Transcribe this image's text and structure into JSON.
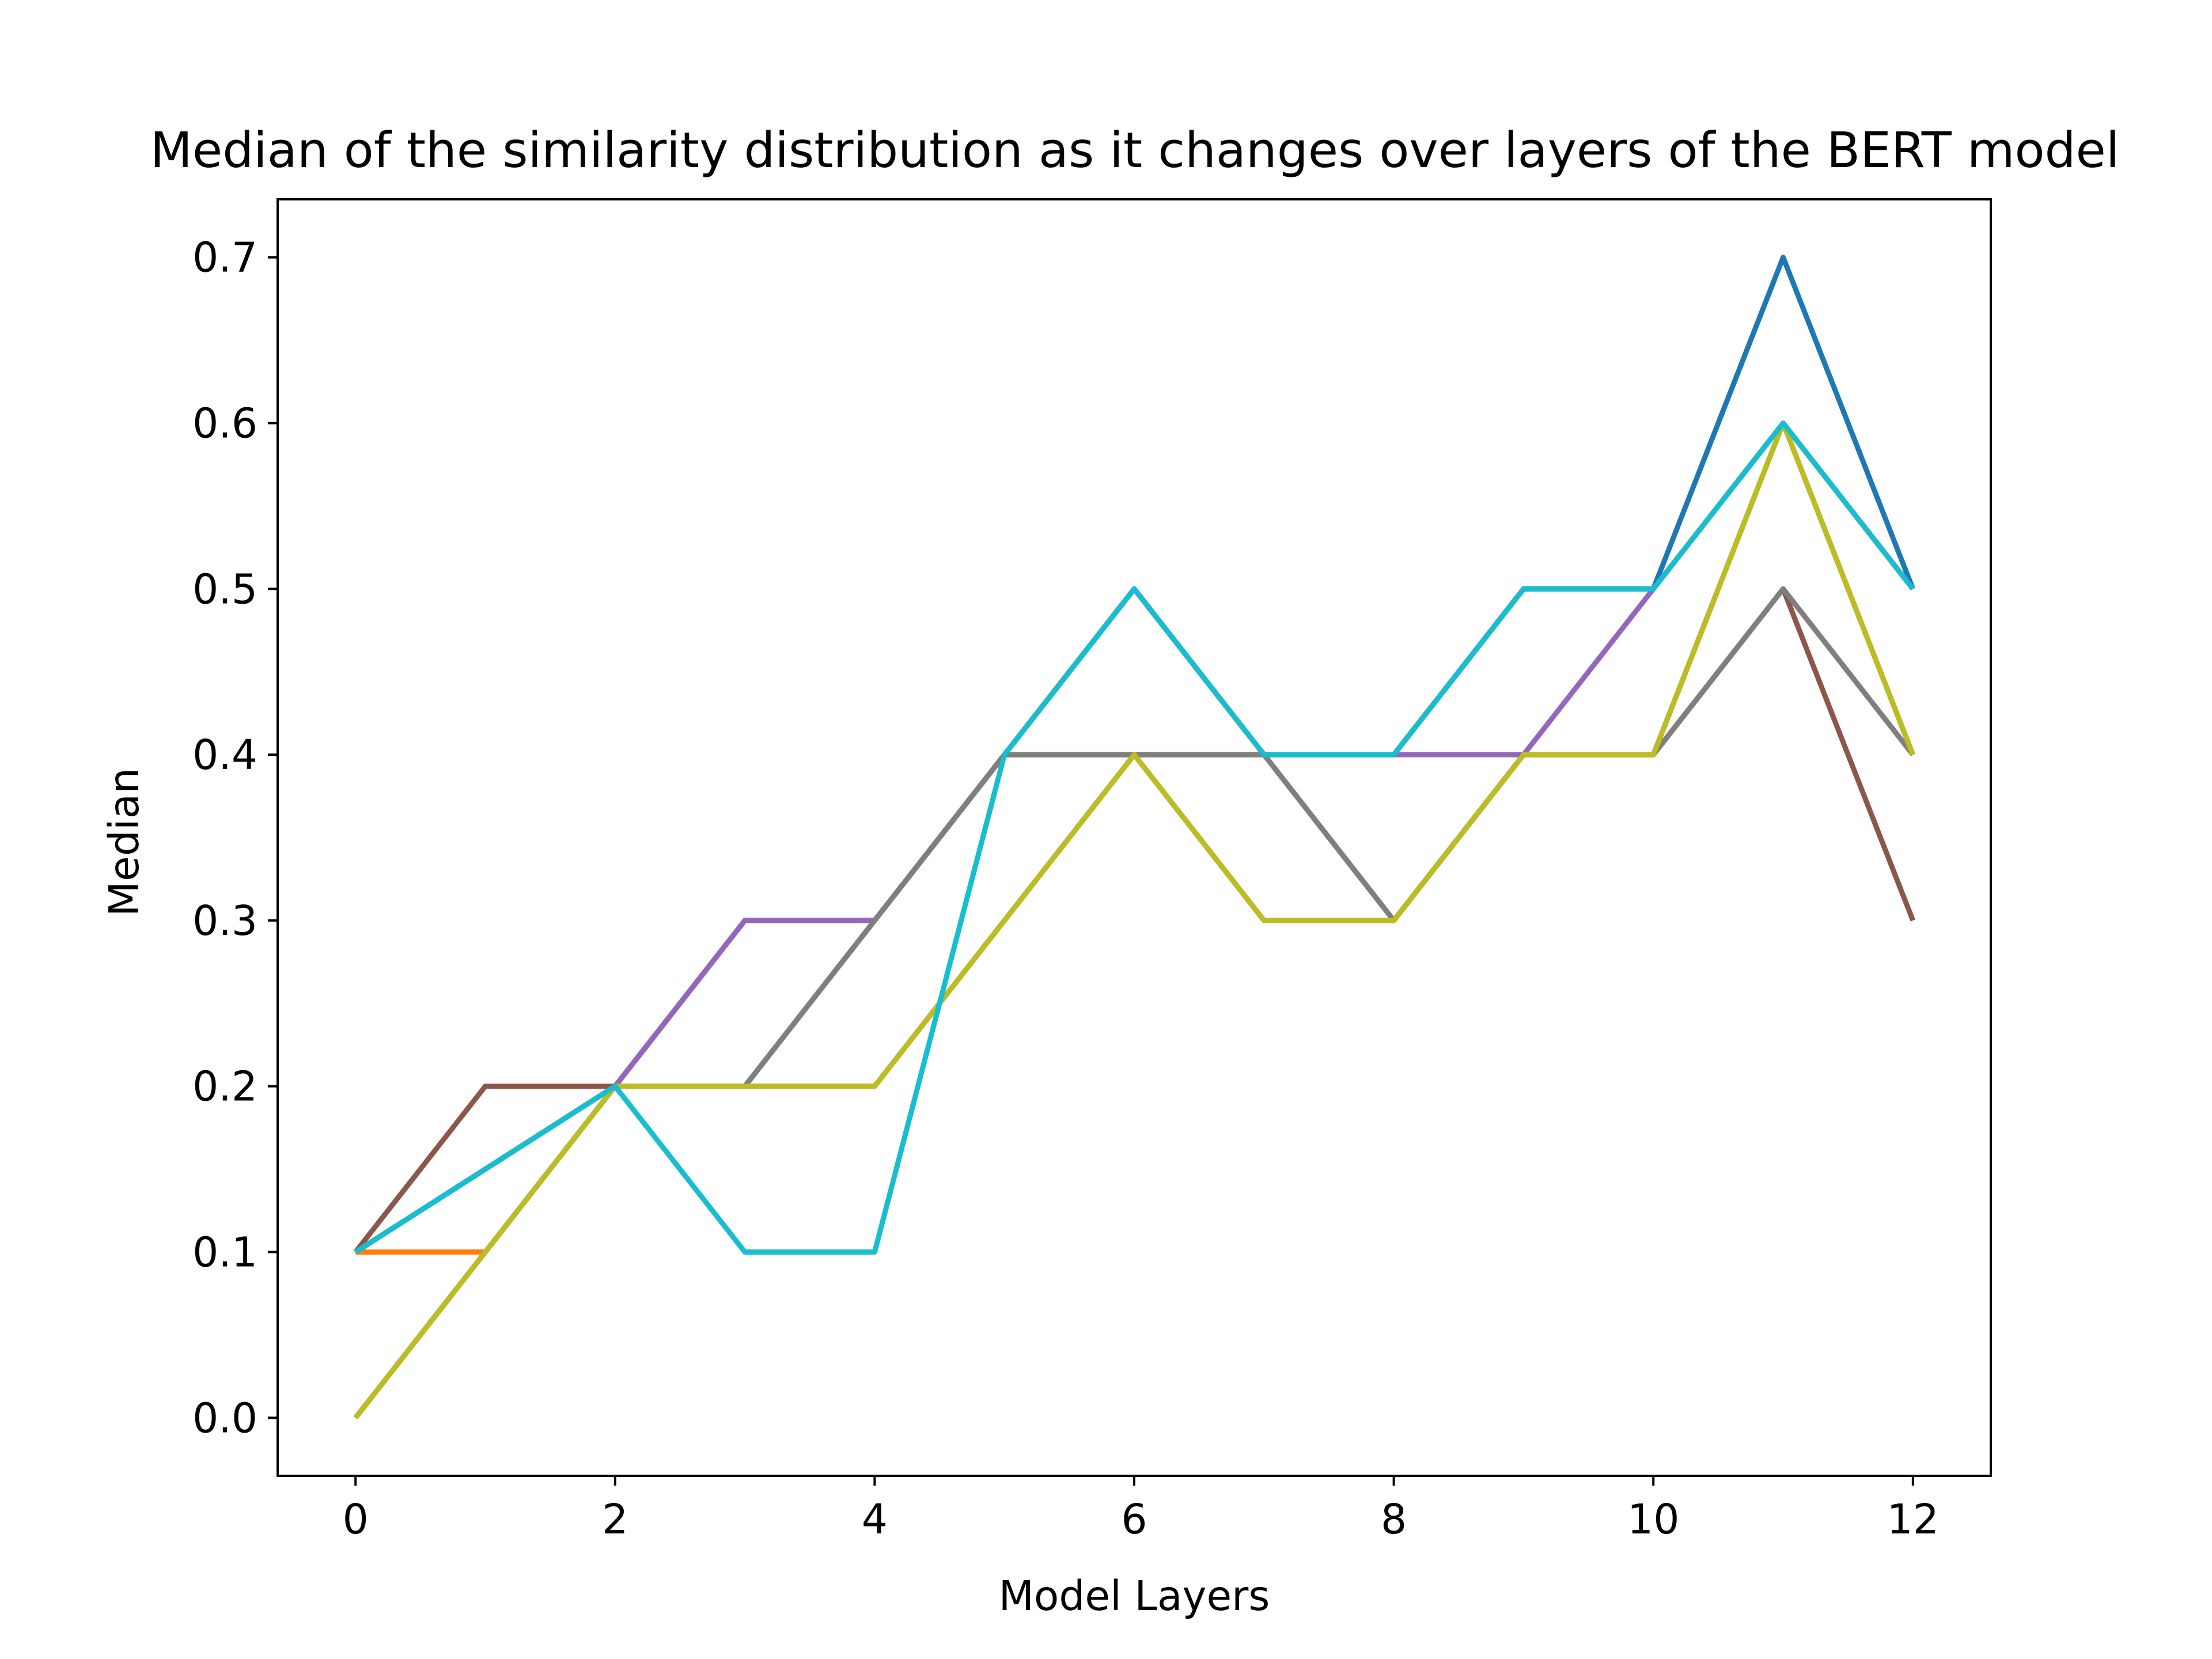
{
  "chart_data": {
    "type": "line",
    "title": "Median of the similarity distribution as it changes over layers of the BERT model",
    "xlabel": "Model Layers",
    "ylabel": "Median",
    "xlim": [
      -0.6,
      12.6
    ],
    "ylim": [
      -0.035,
      0.735
    ],
    "xticks": [
      0,
      2,
      4,
      6,
      8,
      10,
      12
    ],
    "yticks": [
      0.0,
      0.1,
      0.2,
      0.3,
      0.4,
      0.5,
      0.6,
      0.7
    ],
    "grid": false,
    "legend": "none",
    "x": [
      0,
      1,
      2,
      3,
      4,
      5,
      6,
      7,
      8,
      9,
      10,
      11,
      12
    ],
    "series": [
      {
        "color": "#1f77b4",
        "values": [
          0.1,
          0.15,
          0.2,
          0.3,
          0.3,
          0.4,
          0.5,
          0.4,
          0.4,
          0.5,
          0.5,
          0.7,
          0.5
        ]
      },
      {
        "color": "#ff7f0e",
        "values": [
          0.1,
          0.1,
          0.2,
          0.2,
          0.3,
          0.4,
          0.4,
          0.4,
          0.3,
          0.4,
          0.4,
          0.5,
          0.4
        ]
      },
      {
        "color": "#2ca02c",
        "values": [
          0.0,
          0.1,
          0.2,
          0.2,
          0.2,
          0.3,
          0.4,
          0.3,
          0.3,
          0.4,
          0.4,
          0.6,
          0.4
        ]
      },
      {
        "color": "#d62728",
        "values": [
          0.1,
          0.15,
          0.2,
          0.3,
          0.3,
          0.4,
          0.5,
          0.4,
          0.4,
          0.5,
          0.5,
          0.6,
          0.5
        ]
      },
      {
        "color": "#9467bd",
        "values": [
          0.1,
          0.15,
          0.2,
          0.3,
          0.3,
          0.4,
          0.4,
          0.4,
          0.4,
          0.4,
          0.5,
          0.6,
          0.5
        ]
      },
      {
        "color": "#8c564b",
        "values": [
          0.1,
          0.2,
          0.2,
          0.2,
          0.3,
          0.4,
          0.4,
          0.4,
          0.3,
          0.4,
          0.4,
          0.5,
          0.3
        ]
      },
      {
        "color": "#e377c2",
        "values": [
          0.0,
          0.1,
          0.2,
          0.2,
          0.2,
          0.3,
          0.4,
          0.3,
          0.3,
          0.4,
          0.4,
          0.6,
          0.4
        ]
      },
      {
        "color": "#7f7f7f",
        "values": [
          0.0,
          0.1,
          0.2,
          0.2,
          0.3,
          0.4,
          0.4,
          0.4,
          0.3,
          0.4,
          0.4,
          0.5,
          0.4
        ]
      },
      {
        "color": "#bcbd22",
        "values": [
          0.0,
          0.1,
          0.2,
          0.2,
          0.2,
          0.3,
          0.4,
          0.3,
          0.3,
          0.4,
          0.4,
          0.6,
          0.4
        ]
      },
      {
        "color": "#17becf",
        "values": [
          0.1,
          0.15,
          0.2,
          0.1,
          0.1,
          0.4,
          0.5,
          0.4,
          0.4,
          0.5,
          0.5,
          0.6,
          0.5
        ]
      }
    ]
  }
}
